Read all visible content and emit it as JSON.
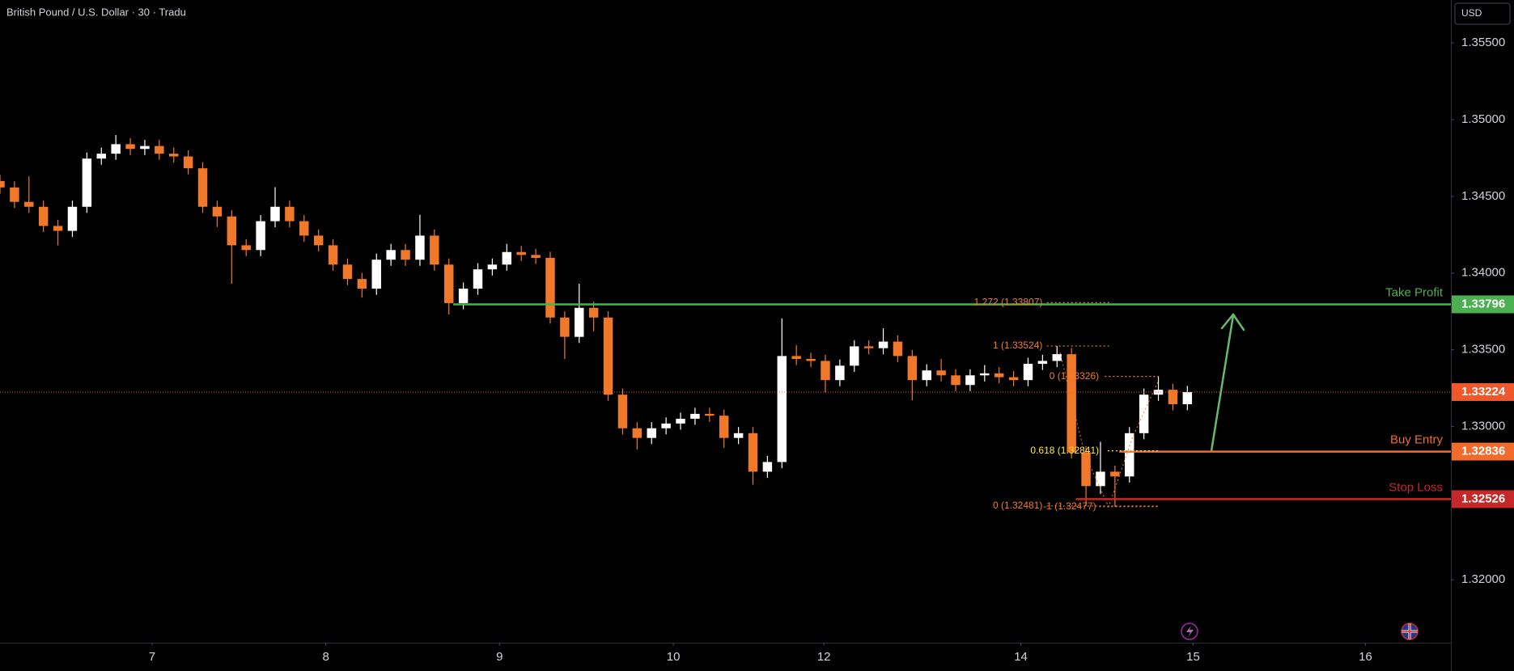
{
  "chart_data": {
    "type": "candlestick",
    "title": "British Pound / U.S. Dollar · 30 · Tradu",
    "currency": "USD",
    "up_color": "#ffffff",
    "down_color": "#f0782a",
    "open": [
      1.346,
      1.34558,
      1.34464,
      1.34432,
      1.34307,
      1.34275,
      1.34432,
      1.34746,
      1.34778,
      1.3484,
      1.34809,
      1.34828,
      1.34778,
      1.3476,
      1.34683,
      1.34432,
      1.34369,
      1.34181,
      1.3415,
      1.34338,
      1.34432,
      1.34338,
      1.34244,
      1.34181,
      1.34055,
      1.33961,
      1.33898,
      1.34087,
      1.3415,
      1.34087,
      1.34244,
      1.34055,
      1.33804,
      1.33898,
      1.34024,
      1.34055,
      1.34137,
      1.34118,
      1.34099,
      1.3371,
      1.33584,
      1.33773,
      1.3371,
      1.33207,
      1.32988,
      1.32925,
      1.32988,
      1.33019,
      1.3305,
      1.33082,
      1.3307,
      1.32925,
      1.32956,
      1.32705,
      1.32768,
      1.33459,
      1.3344,
      1.33427,
      1.33302,
      1.33396,
      1.33522,
      1.3351,
      1.33553,
      1.33459,
      1.33302,
      1.33365,
      1.33333,
      1.3327,
      1.33333,
      1.33346,
      1.33321,
      1.33302,
      1.33408,
      1.33427,
      1.33471,
      1.32831,
      1.32611,
      1.32705,
      1.32674,
      1.32956,
      1.33207,
      1.33239,
      1.33145
    ],
    "high": [
      1.3464,
      1.34598,
      1.3463,
      1.34472,
      1.34347,
      1.34472,
      1.34786,
      1.34818,
      1.349,
      1.3488,
      1.34868,
      1.34868,
      1.34818,
      1.348,
      1.34723,
      1.34472,
      1.34409,
      1.34221,
      1.34378,
      1.3456,
      1.34472,
      1.34378,
      1.34284,
      1.34221,
      1.34095,
      1.34001,
      1.34127,
      1.3419,
      1.3419,
      1.3438,
      1.34284,
      1.34095,
      1.33938,
      1.34064,
      1.34095,
      1.3419,
      1.34177,
      1.34158,
      1.34139,
      1.3375,
      1.3393,
      1.33813,
      1.3375,
      1.33247,
      1.33028,
      1.33028,
      1.33059,
      1.3309,
      1.33122,
      1.33122,
      1.3311,
      1.32996,
      1.32996,
      1.32808,
      1.33704,
      1.3353,
      1.3348,
      1.33467,
      1.33436,
      1.33562,
      1.33562,
      1.3364,
      1.33593,
      1.33499,
      1.33405,
      1.3344,
      1.33373,
      1.33373,
      1.334,
      1.33386,
      1.33361,
      1.33448,
      1.33467,
      1.33524,
      1.33511,
      1.32871,
      1.329,
      1.32745,
      1.32996,
      1.33247,
      1.33326,
      1.33279,
      1.33264
    ],
    "low": [
      1.34518,
      1.34424,
      1.34392,
      1.34267,
      1.3418,
      1.34235,
      1.34392,
      1.34706,
      1.34738,
      1.34769,
      1.34769,
      1.34738,
      1.3472,
      1.34643,
      1.34392,
      1.343,
      1.3393,
      1.3411,
      1.3411,
      1.34298,
      1.34298,
      1.34204,
      1.34141,
      1.34015,
      1.33921,
      1.3384,
      1.33858,
      1.34047,
      1.34047,
      1.34047,
      1.34015,
      1.3373,
      1.33764,
      1.33858,
      1.33984,
      1.34015,
      1.34078,
      1.34059,
      1.3367,
      1.3344,
      1.33544,
      1.3362,
      1.33167,
      1.32948,
      1.3285,
      1.32885,
      1.32948,
      1.32979,
      1.3301,
      1.3303,
      1.3286,
      1.32885,
      1.3262,
      1.32665,
      1.32728,
      1.334,
      1.33387,
      1.3322,
      1.33262,
      1.33356,
      1.3347,
      1.3347,
      1.33419,
      1.3317,
      1.33262,
      1.33293,
      1.3323,
      1.3323,
      1.33293,
      1.33281,
      1.33262,
      1.33262,
      1.33368,
      1.33387,
      1.32791,
      1.32481,
      1.3256,
      1.32477,
      1.32634,
      1.32916,
      1.33167,
      1.33105,
      1.33105
    ],
    "close": [
      1.34558,
      1.34464,
      1.34432,
      1.34307,
      1.34275,
      1.34432,
      1.34746,
      1.34778,
      1.3484,
      1.34809,
      1.34828,
      1.34778,
      1.3476,
      1.34683,
      1.34432,
      1.34369,
      1.34181,
      1.3415,
      1.34338,
      1.34432,
      1.34338,
      1.34244,
      1.34181,
      1.34055,
      1.33961,
      1.33898,
      1.34087,
      1.3415,
      1.34087,
      1.34244,
      1.34055,
      1.33804,
      1.33898,
      1.34024,
      1.34055,
      1.34137,
      1.34118,
      1.34099,
      1.3371,
      1.33584,
      1.33773,
      1.3371,
      1.33207,
      1.32988,
      1.32925,
      1.32988,
      1.33019,
      1.3305,
      1.33082,
      1.3307,
      1.32925,
      1.32956,
      1.32705,
      1.32768,
      1.33459,
      1.3344,
      1.33427,
      1.33302,
      1.33396,
      1.33522,
      1.3351,
      1.33553,
      1.33459,
      1.33302,
      1.33365,
      1.33333,
      1.3327,
      1.33333,
      1.33346,
      1.33321,
      1.33302,
      1.33408,
      1.33427,
      1.33471,
      1.32831,
      1.32611,
      1.32705,
      1.32674,
      1.32956,
      1.33207,
      1.33239,
      1.33145,
      1.33224
    ],
    "xlim": [
      0,
      100.2
    ],
    "xticks": [
      {
        "value": 10.5,
        "label": "7"
      },
      {
        "value": 22.5,
        "label": "8"
      },
      {
        "value": 34.5,
        "label": "9"
      },
      {
        "value": 46.5,
        "label": "10"
      },
      {
        "value": 56.9,
        "label": "12"
      },
      {
        "value": 70.5,
        "label": "14"
      },
      {
        "value": 82.4,
        "label": "15"
      },
      {
        "value": 94.3,
        "label": "16"
      }
    ],
    "ylim": [
      1.3159,
      1.3578
    ],
    "yticks": [
      {
        "value": 1.355,
        "label": "1.35500"
      },
      {
        "value": 1.35,
        "label": "1.35000"
      },
      {
        "value": 1.345,
        "label": "1.34500"
      },
      {
        "value": 1.34,
        "label": "1.34000"
      },
      {
        "value": 1.335,
        "label": "1.33500"
      },
      {
        "value": 1.33,
        "label": "1.33000"
      },
      {
        "value": 1.32,
        "label": "1.32000"
      }
    ],
    "current_price": {
      "value": 1.33224,
      "label": "1.33224",
      "color": "#f0582b"
    },
    "levels": [
      {
        "name": "Take Profit",
        "value": 1.33796,
        "value_label": "1.33796",
        "color": "#4caf50"
      },
      {
        "name": "Buy Entry",
        "value": 1.32836,
        "value_label": "1.32836",
        "color": "#f26b2b"
      },
      {
        "name": "Stop Loss",
        "value": 1.32526,
        "value_label": "1.32526",
        "color": "#c62828"
      }
    ],
    "fibs": [
      {
        "value": 1.33807,
        "label": "1.272 (1.33807)",
        "color": "#f57c2e"
      },
      {
        "value": 1.33524,
        "label": "1 (1.33524)",
        "color": "#f57c2e"
      },
      {
        "value": 1.33326,
        "label": "0 (1.33326)",
        "color": "#f57c2e"
      },
      {
        "value": 1.32841,
        "label": "0.618 (1.32841)",
        "color": "#ffeb3b"
      },
      {
        "value": 1.32481,
        "label": "0 (1.32481)",
        "color": "#f57c2e"
      },
      {
        "value": 1.32477,
        "label": "-1 (1.32477)",
        "color": "#f57c2e"
      }
    ]
  }
}
